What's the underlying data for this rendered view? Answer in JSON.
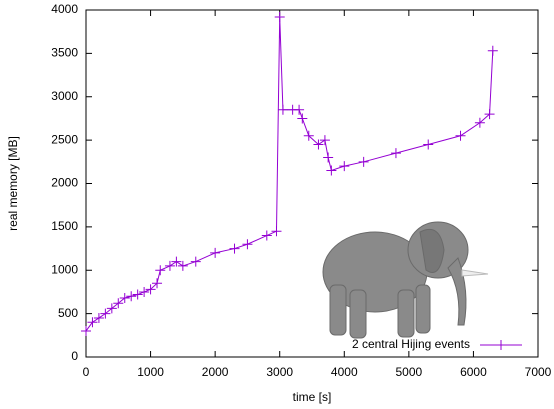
{
  "chart_data": {
    "type": "line",
    "xlabel": "time [s]",
    "ylabel": "real memory [MB]",
    "x": [
      0,
      100,
      200,
      300,
      400,
      500,
      600,
      700,
      800,
      900,
      1000,
      1100,
      1150,
      1300,
      1400,
      1500,
      1700,
      2000,
      2300,
      2500,
      2800,
      2950,
      3000,
      3050,
      3200,
      3300,
      3350,
      3450,
      3600,
      3700,
      3750,
      3800,
      4000,
      4300,
      4800,
      5300,
      5800,
      6100,
      6250,
      6300
    ],
    "series": [
      {
        "name": "2 central Hijing events",
        "color": "#9400d3",
        "values": [
          300,
          400,
          450,
          500,
          560,
          620,
          680,
          700,
          720,
          750,
          780,
          850,
          1000,
          1050,
          1100,
          1050,
          1100,
          1200,
          1250,
          1300,
          1400,
          1450,
          3920,
          2850,
          2850,
          2850,
          2750,
          2550,
          2450,
          2500,
          2300,
          2150,
          2200,
          2250,
          2350,
          2450,
          2550,
          2700,
          2800,
          3530
        ]
      }
    ],
    "xlim": [
      0,
      7000
    ],
    "xticks": [
      0,
      1000,
      2000,
      3000,
      4000,
      5000,
      6000,
      7000
    ],
    "ylim": [
      0,
      4000
    ],
    "yticks": [
      0,
      500,
      1000,
      1500,
      2000,
      2500,
      3000,
      3500,
      4000
    ],
    "grid": false,
    "legend": "bottom-right"
  }
}
